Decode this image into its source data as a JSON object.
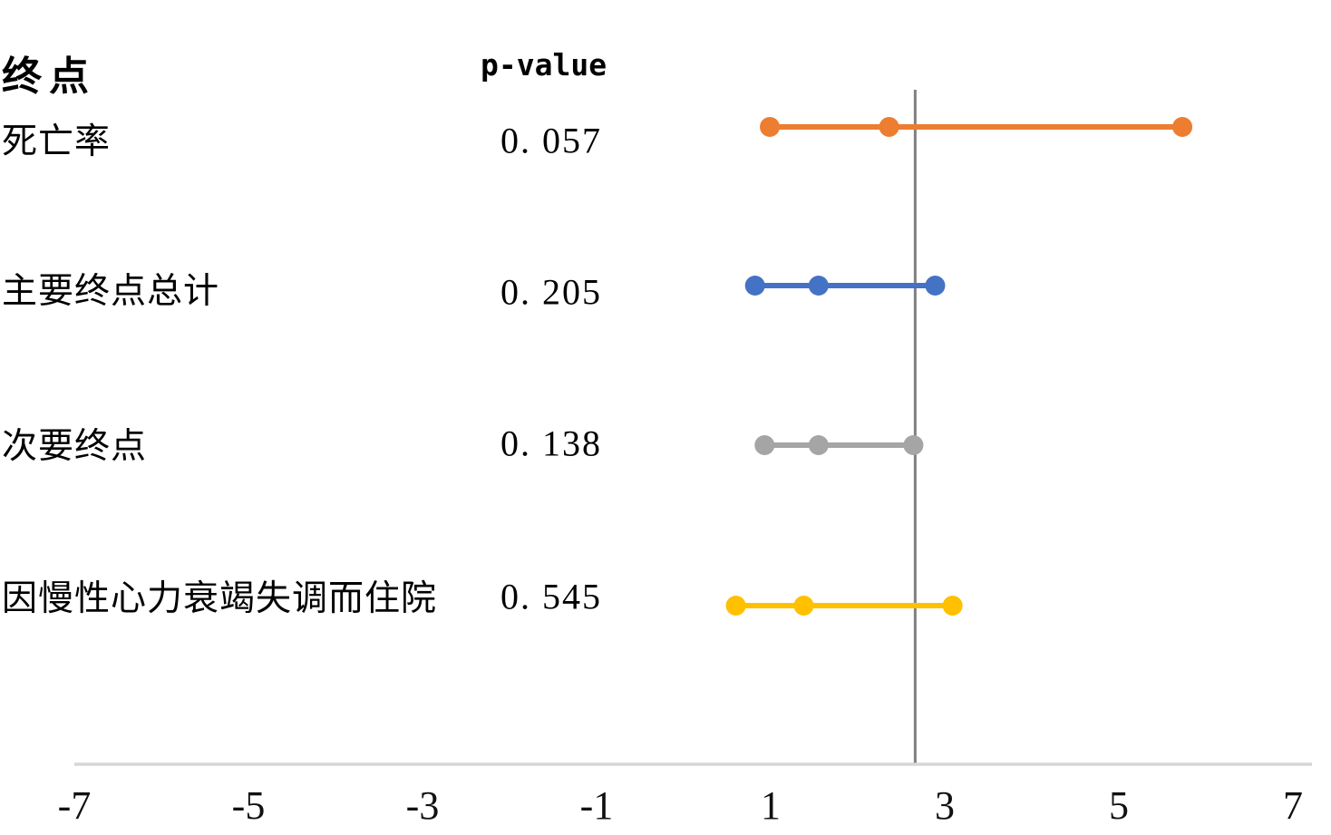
{
  "header": {
    "endpoint_column_label": "终点",
    "pvalue_column_label": "p-value"
  },
  "chart_data": {
    "type": "scatter",
    "subtype": "forest-plot",
    "title": "",
    "xlabel": "",
    "ylabel": "",
    "xlim": [
      -7,
      7
    ],
    "x_ticks": [
      -7,
      -5,
      -3,
      -1,
      1,
      3,
      5,
      7
    ],
    "grid": false,
    "legend": false,
    "reference_line_x": 2.66,
    "axis_color": "#D6D6D6",
    "reference_line_color": "#808080",
    "rows": [
      {
        "label": "死亡率",
        "p_value": 0.057,
        "p_display": "0. 057",
        "ci_low": 0.99,
        "estimate": 2.36,
        "ci_high": 5.73,
        "color": "#ED7D31"
      },
      {
        "label": "主要终点总计",
        "p_value": 0.205,
        "p_display": "0. 205",
        "ci_low": 0.82,
        "estimate": 1.55,
        "ci_high": 2.89,
        "color": "#4472C4"
      },
      {
        "label": "次要终点",
        "p_value": 0.138,
        "p_display": "0. 138",
        "ci_low": 0.93,
        "estimate": 1.55,
        "ci_high": 2.64,
        "color": "#A5A5A5"
      },
      {
        "label": "因慢性心力衰竭失调而住院",
        "p_value": 0.545,
        "p_display": "0. 545",
        "ci_low": 0.6,
        "estimate": 1.38,
        "ci_high": 3.09,
        "color": "#FFC000"
      }
    ]
  }
}
